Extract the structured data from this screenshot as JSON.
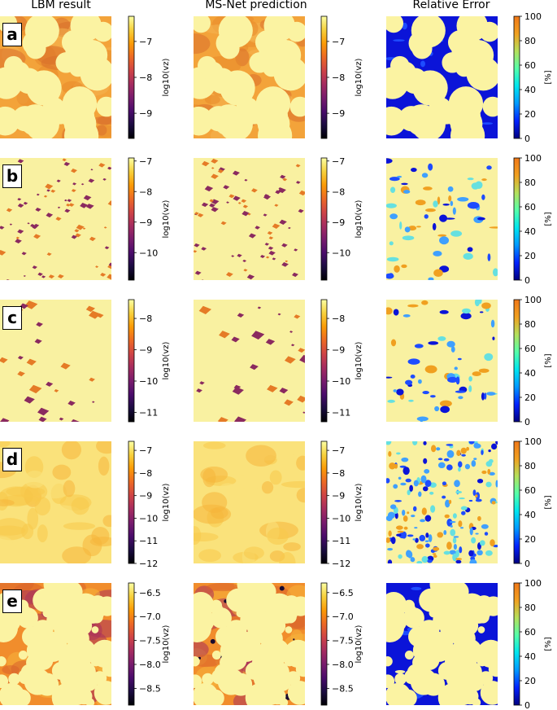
{
  "figure": {
    "column_titles": [
      "LBM result",
      "MS-Net prediction",
      "Relative Error"
    ]
  },
  "chart_data": [
    {
      "panel": "a",
      "type": "heatmap",
      "column": "LBM result",
      "colorbar_label": "log10(vz)",
      "colormap": "inferno",
      "ticks": [
        "−7",
        "−8",
        "−9"
      ],
      "tick_values": [
        -7,
        -8,
        -9
      ],
      "range": [
        -9.7,
        -6.3
      ]
    },
    {
      "panel": "a",
      "type": "heatmap",
      "column": "MS-Net prediction",
      "colorbar_label": "log10(vz)",
      "colormap": "inferno",
      "ticks": [
        "−7",
        "−8",
        "−9"
      ],
      "tick_values": [
        -7,
        -8,
        -9
      ],
      "range": [
        -9.7,
        -6.3
      ]
    },
    {
      "panel": "a",
      "type": "heatmap",
      "column": "Relative Error",
      "colorbar_label": "[%]",
      "colormap": "jet",
      "ticks": [
        "100",
        "80",
        "60",
        "40",
        "20",
        "0"
      ],
      "tick_values": [
        100,
        80,
        60,
        40,
        20,
        0
      ],
      "range": [
        0,
        100
      ]
    },
    {
      "panel": "b",
      "type": "heatmap",
      "column": "LBM result",
      "colorbar_label": "log10(vz)",
      "colormap": "inferno",
      "ticks": [
        "−7",
        "−8",
        "−9",
        "−10"
      ],
      "tick_values": [
        -7,
        -8,
        -9,
        -10
      ],
      "range": [
        -10.9,
        -6.9
      ]
    },
    {
      "panel": "b",
      "type": "heatmap",
      "column": "MS-Net prediction",
      "colorbar_label": "log10(vz)",
      "colormap": "inferno",
      "ticks": [
        "−7",
        "−8",
        "−9",
        "−10"
      ],
      "tick_values": [
        -7,
        -8,
        -9,
        -10
      ],
      "range": [
        -10.9,
        -6.9
      ]
    },
    {
      "panel": "b",
      "type": "heatmap",
      "column": "Relative Error",
      "colorbar_label": "[%]",
      "colormap": "jet",
      "ticks": [
        "100",
        "80",
        "60",
        "40",
        "20",
        "0"
      ],
      "tick_values": [
        100,
        80,
        60,
        40,
        20,
        0
      ],
      "range": [
        0,
        100
      ]
    },
    {
      "panel": "c",
      "type": "heatmap",
      "column": "LBM result",
      "colorbar_label": "log10(vz)",
      "colormap": "inferno",
      "ticks": [
        "−8",
        "−9",
        "−10",
        "−11"
      ],
      "tick_values": [
        -8,
        -9,
        -10,
        -11
      ],
      "range": [
        -11.3,
        -7.4
      ]
    },
    {
      "panel": "c",
      "type": "heatmap",
      "column": "MS-Net prediction",
      "colorbar_label": "log10(vz)",
      "colormap": "inferno",
      "ticks": [
        "−8",
        "−9",
        "−10",
        "−11"
      ],
      "tick_values": [
        -8,
        -9,
        -10,
        -11
      ],
      "range": [
        -11.3,
        -7.4
      ]
    },
    {
      "panel": "c",
      "type": "heatmap",
      "column": "Relative Error",
      "colorbar_label": "[%]",
      "colormap": "jet",
      "ticks": [
        "100",
        "80",
        "60",
        "40",
        "20",
        "0"
      ],
      "tick_values": [
        100,
        80,
        60,
        40,
        20,
        0
      ],
      "range": [
        0,
        100
      ]
    },
    {
      "panel": "d",
      "type": "heatmap",
      "column": "LBM result",
      "colorbar_label": "log10(vz)",
      "colormap": "inferno",
      "ticks": [
        "−7",
        "−8",
        "−9",
        "−10",
        "−11",
        "−12"
      ],
      "tick_values": [
        -7,
        -8,
        -9,
        -10,
        -11,
        -12
      ],
      "range": [
        -12,
        -6.6
      ]
    },
    {
      "panel": "d",
      "type": "heatmap",
      "column": "MS-Net prediction",
      "colorbar_label": "log10(vz)",
      "colormap": "inferno",
      "ticks": [
        "−7",
        "−8",
        "−9",
        "−10",
        "−11",
        "−12"
      ],
      "tick_values": [
        -7,
        -8,
        -9,
        -10,
        -11,
        -12
      ],
      "range": [
        -12,
        -6.6
      ]
    },
    {
      "panel": "d",
      "type": "heatmap",
      "column": "Relative Error",
      "colorbar_label": "[%]",
      "colormap": "jet",
      "ticks": [
        "100",
        "80",
        "60",
        "40",
        "20",
        "0"
      ],
      "tick_values": [
        100,
        80,
        60,
        40,
        20,
        0
      ],
      "range": [
        0,
        100
      ]
    },
    {
      "panel": "e",
      "type": "heatmap",
      "column": "LBM result",
      "colorbar_label": "log10(vz)",
      "colormap": "inferno",
      "ticks": [
        "−6.5",
        "−7.0",
        "−7.5",
        "−8.0",
        "−8.5"
      ],
      "tick_values": [
        -6.5,
        -7.0,
        -7.5,
        -8.0,
        -8.5
      ],
      "range": [
        -8.85,
        -6.3
      ]
    },
    {
      "panel": "e",
      "type": "heatmap",
      "column": "MS-Net prediction",
      "colorbar_label": "log10(vz)",
      "colormap": "inferno",
      "ticks": [
        "−6.5",
        "−7.0",
        "−7.5",
        "−8.0",
        "−8.5"
      ],
      "tick_values": [
        -6.5,
        -7.0,
        -7.5,
        -8.0,
        -8.5
      ],
      "range": [
        -8.85,
        -6.3
      ]
    },
    {
      "panel": "e",
      "type": "heatmap",
      "column": "Relative Error",
      "colorbar_label": "[%]",
      "colormap": "jet",
      "ticks": [
        "100",
        "80",
        "60",
        "40",
        "20",
        "0"
      ],
      "tick_values": [
        100,
        80,
        60,
        40,
        20,
        0
      ],
      "range": [
        0,
        100
      ]
    }
  ]
}
